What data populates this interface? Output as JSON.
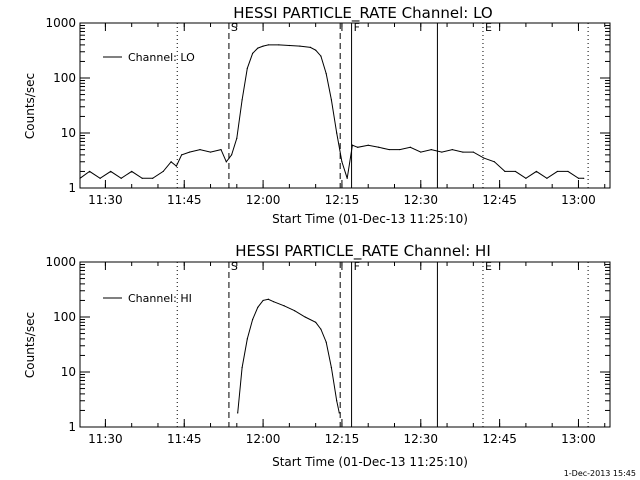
{
  "charts": [
    {
      "title": "HESSI PARTICLE_RATE Channel: LO",
      "xlabel": "Start Time (01-Dec-13 11:25:10)",
      "ylabel": "Counts/sec",
      "legend": "Channel: LO"
    },
    {
      "title": "HESSI PARTICLE_RATE Channel: HI",
      "xlabel": "Start Time (01-Dec-13 11:25:10)",
      "ylabel": "Counts/sec",
      "legend": "Channel: HI"
    }
  ],
  "footer_stamp": "1-Dec-2013 15:45",
  "chart_data": [
    {
      "type": "line",
      "title": "HESSI PARTICLE_RATE Channel: LO",
      "xlabel": "Start Time (01-Dec-13 11:25:10)",
      "ylabel": "Counts/sec",
      "yscale": "log",
      "xlim": [
        "11:25:10",
        "13:06:00"
      ],
      "ylim": [
        1,
        1000
      ],
      "x_ticks": [
        "11:30",
        "11:45",
        "12:00",
        "12:15",
        "12:30",
        "12:45",
        "13:00"
      ],
      "y_ticks": [
        "1",
        "10",
        "100",
        "1000"
      ],
      "legend_position": "top-left",
      "markers": [
        {
          "label": "S",
          "time": "11:53:30",
          "style": "dashed"
        },
        {
          "label": "",
          "time": "12:14:40",
          "style": "dashed"
        },
        {
          "label": "F",
          "time": "12:16:50",
          "style": "solid"
        },
        {
          "label": "",
          "time": "12:33:10",
          "style": "solid"
        },
        {
          "label": "E",
          "time": "12:41:50",
          "style": "dotted"
        },
        {
          "label": "",
          "time": "11:43:40",
          "style": "dotted"
        },
        {
          "label": "",
          "time": "13:01:50",
          "style": "dotted"
        }
      ],
      "series": [
        {
          "name": "Channel: LO",
          "x": [
            "11:25:10",
            "11:27:00",
            "11:29:00",
            "11:31:00",
            "11:33:00",
            "11:35:00",
            "11:37:00",
            "11:39:00",
            "11:41:00",
            "11:42:30",
            "11:43:30",
            "11:44:30",
            "11:46:00",
            "11:48:00",
            "11:50:00",
            "11:52:00",
            "11:53:00",
            "11:54:00",
            "11:55:00",
            "11:56:00",
            "11:57:00",
            "11:58:00",
            "11:59:00",
            "12:00:00",
            "12:01:00",
            "12:03:00",
            "12:05:00",
            "12:07:00",
            "12:09:00",
            "12:10:00",
            "12:11:00",
            "12:12:00",
            "12:13:00",
            "12:14:00",
            "12:15:00",
            "12:16:00",
            "12:17:00",
            "12:18:00",
            "12:20:00",
            "12:22:00",
            "12:24:00",
            "12:26:00",
            "12:28:00",
            "12:30:00",
            "12:32:00",
            "12:34:00",
            "12:36:00",
            "12:38:00",
            "12:40:00",
            "12:42:00",
            "12:44:00",
            "12:46:00",
            "12:48:00",
            "12:50:00",
            "12:52:00",
            "12:54:00",
            "12:56:00",
            "12:58:00",
            "13:00:00",
            "13:01:00"
          ],
          "values": [
            1.5,
            2,
            1.5,
            2,
            1.5,
            2,
            1.5,
            1.5,
            2,
            3,
            2.5,
            4,
            4.5,
            5,
            4.5,
            5,
            3,
            4,
            8,
            40,
            150,
            280,
            350,
            380,
            400,
            400,
            390,
            380,
            360,
            320,
            250,
            120,
            40,
            10,
            3,
            1.5,
            6,
            5.5,
            6,
            5.5,
            5,
            5,
            5.5,
            4.5,
            5,
            4.5,
            5,
            4.5,
            4.5,
            3.5,
            3,
            2,
            2,
            1.5,
            2,
            1.5,
            2,
            2,
            1.5,
            1.5
          ]
        }
      ]
    },
    {
      "type": "line",
      "title": "HESSI PARTICLE_RATE Channel: HI",
      "xlabel": "Start Time (01-Dec-13 11:25:10)",
      "ylabel": "Counts/sec",
      "yscale": "log",
      "xlim": [
        "11:25:10",
        "13:06:00"
      ],
      "ylim": [
        1,
        1000
      ],
      "x_ticks": [
        "11:30",
        "11:45",
        "12:00",
        "12:15",
        "12:30",
        "12:45",
        "13:00"
      ],
      "y_ticks": [
        "1",
        "10",
        "100",
        "1000"
      ],
      "legend_position": "top-left",
      "markers": [
        {
          "label": "S",
          "time": "11:53:30",
          "style": "dashed"
        },
        {
          "label": "",
          "time": "12:14:40",
          "style": "dashed"
        },
        {
          "label": "F",
          "time": "12:16:50",
          "style": "solid"
        },
        {
          "label": "",
          "time": "12:33:10",
          "style": "solid"
        },
        {
          "label": "E",
          "time": "12:41:50",
          "style": "dotted"
        },
        {
          "label": "",
          "time": "11:43:40",
          "style": "dotted"
        },
        {
          "label": "",
          "time": "13:01:50",
          "style": "dotted"
        }
      ],
      "series": [
        {
          "name": "Channel: HI",
          "x": [
            "11:55:10",
            "11:56:00",
            "11:57:00",
            "11:58:00",
            "11:59:00",
            "12:00:00",
            "12:01:00",
            "12:02:00",
            "12:04:00",
            "12:06:00",
            "12:08:00",
            "12:10:00",
            "12:11:00",
            "12:12:00",
            "12:13:00",
            "12:14:00",
            "12:14:30"
          ],
          "values": [
            1.8,
            12,
            40,
            90,
            150,
            200,
            210,
            190,
            160,
            130,
            100,
            80,
            60,
            35,
            12,
            3,
            1.8
          ]
        }
      ]
    }
  ]
}
